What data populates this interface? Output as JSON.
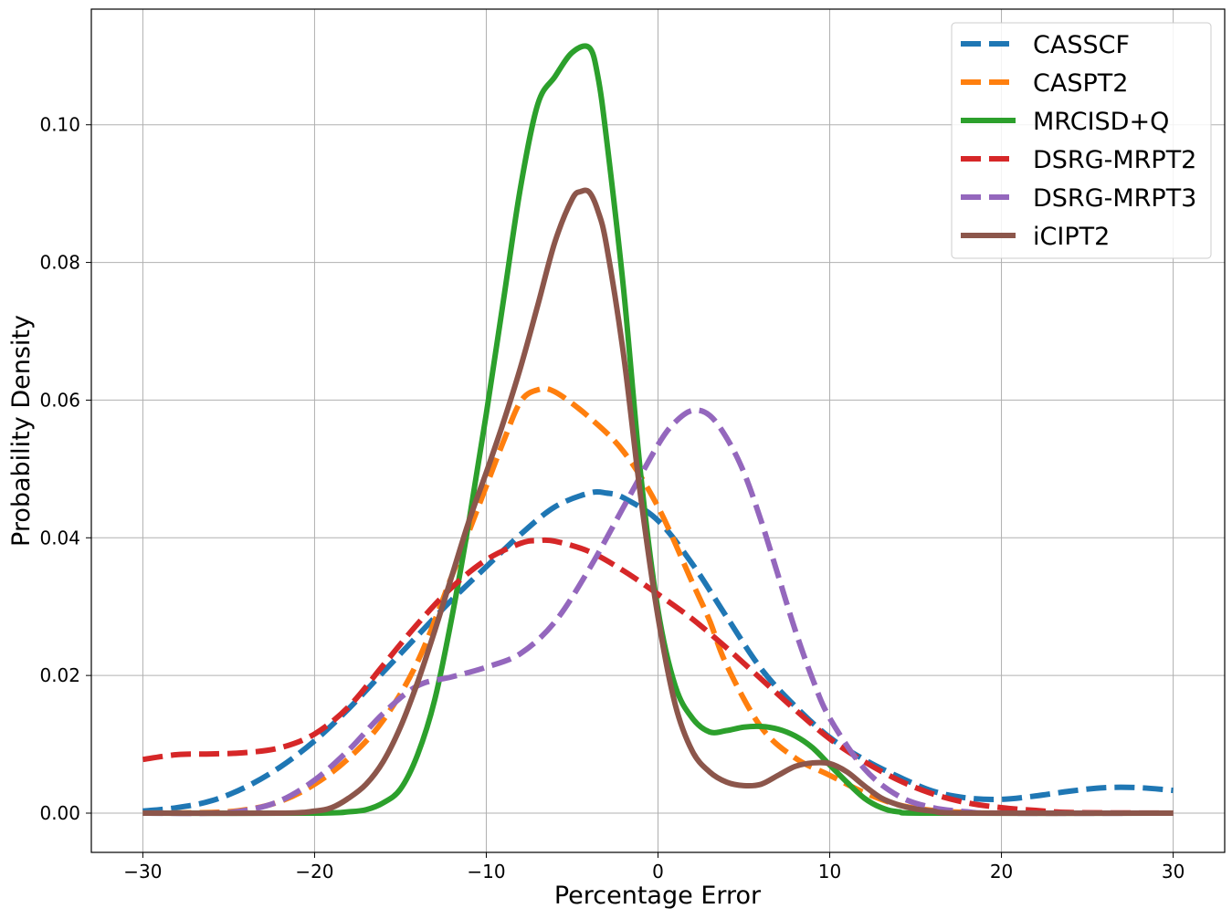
{
  "chart_data": {
    "type": "line",
    "title": "",
    "xlabel": "Percentage Error",
    "ylabel": "Probability Density",
    "xlim": [
      -33,
      33
    ],
    "ylim": [
      -0.0057,
      0.1168
    ],
    "x_ticks": [
      -30,
      -20,
      -10,
      0,
      10,
      20,
      30
    ],
    "x_tick_labels": [
      "−30",
      "−20",
      "−10",
      "0",
      "10",
      "20",
      "30"
    ],
    "y_ticks": [
      0.0,
      0.02,
      0.04,
      0.06,
      0.08,
      0.1
    ],
    "y_tick_labels": [
      "0.00",
      "0.02",
      "0.04",
      "0.06",
      "0.08",
      "0.10"
    ],
    "grid": true,
    "legend_position": "top-right",
    "series": [
      {
        "name": "CASSCF",
        "color": "#1f77b4",
        "style": "dashed",
        "points": [
          [
            -30,
            0.0003
          ],
          [
            -28,
            0.0008
          ],
          [
            -26,
            0.0018
          ],
          [
            -24,
            0.0038
          ],
          [
            -22,
            0.0067
          ],
          [
            -20,
            0.0105
          ],
          [
            -18,
            0.0152
          ],
          [
            -16,
            0.0205
          ],
          [
            -14,
            0.0258
          ],
          [
            -12,
            0.031
          ],
          [
            -10,
            0.0358
          ],
          [
            -8,
            0.0405
          ],
          [
            -6,
            0.0445
          ],
          [
            -4,
            0.0465
          ],
          [
            -3,
            0.0465
          ],
          [
            -2,
            0.0458
          ],
          [
            0,
            0.0425
          ],
          [
            2,
            0.0362
          ],
          [
            4,
            0.0285
          ],
          [
            6,
            0.021
          ],
          [
            8,
            0.0155
          ],
          [
            10,
            0.011
          ],
          [
            12,
            0.0078
          ],
          [
            14,
            0.0053
          ],
          [
            16,
            0.0032
          ],
          [
            18,
            0.0022
          ],
          [
            20,
            0.002
          ],
          [
            22,
            0.0025
          ],
          [
            24,
            0.0032
          ],
          [
            26,
            0.0037
          ],
          [
            28,
            0.0037
          ],
          [
            30,
            0.0033
          ]
        ]
      },
      {
        "name": "CASPT2",
        "color": "#ff7f0e",
        "style": "dashed",
        "points": [
          [
            -30,
            0.0
          ],
          [
            -26,
            0.0001
          ],
          [
            -24,
            0.0005
          ],
          [
            -22,
            0.0017
          ],
          [
            -20,
            0.0042
          ],
          [
            -18,
            0.008
          ],
          [
            -16,
            0.0135
          ],
          [
            -14,
            0.022
          ],
          [
            -12,
            0.0345
          ],
          [
            -10,
            0.0475
          ],
          [
            -9,
            0.054
          ],
          [
            -8,
            0.0598
          ],
          [
            -7,
            0.0615
          ],
          [
            -6,
            0.0612
          ],
          [
            -4,
            0.0575
          ],
          [
            -2,
            0.0525
          ],
          [
            0,
            0.0445
          ],
          [
            2,
            0.0335
          ],
          [
            3,
            0.028
          ],
          [
            4,
            0.0215
          ],
          [
            6,
            0.0125
          ],
          [
            8,
            0.008
          ],
          [
            10,
            0.0055
          ],
          [
            12,
            0.003
          ],
          [
            14,
            0.0012
          ],
          [
            16,
            0.0004
          ],
          [
            18,
            0.0001
          ],
          [
            20,
            0.0
          ],
          [
            30,
            0.0
          ]
        ]
      },
      {
        "name": "MRCISD+Q",
        "color": "#2ca02c",
        "style": "solid",
        "points": [
          [
            -30,
            0.0
          ],
          [
            -20,
            0.0
          ],
          [
            -18,
            0.0002
          ],
          [
            -17,
            0.0005
          ],
          [
            -16,
            0.0015
          ],
          [
            -15,
            0.0035
          ],
          [
            -14,
            0.0085
          ],
          [
            -13,
            0.0165
          ],
          [
            -12,
            0.0285
          ],
          [
            -11,
            0.0425
          ],
          [
            -10,
            0.058
          ],
          [
            -9,
            0.0745
          ],
          [
            -8,
            0.091
          ],
          [
            -7,
            0.103
          ],
          [
            -6,
            0.107
          ],
          [
            -5,
            0.1105
          ],
          [
            -4,
            0.1112
          ],
          [
            -3.5,
            0.107
          ],
          [
            -3,
            0.098
          ],
          [
            -2,
            0.076
          ],
          [
            -1,
            0.049
          ],
          [
            0,
            0.0295
          ],
          [
            1,
            0.0185
          ],
          [
            2,
            0.0138
          ],
          [
            3,
            0.0118
          ],
          [
            4,
            0.012
          ],
          [
            5,
            0.0125
          ],
          [
            6,
            0.0126
          ],
          [
            7,
            0.0122
          ],
          [
            8,
            0.0112
          ],
          [
            9,
            0.0095
          ],
          [
            10,
            0.007
          ],
          [
            11,
            0.0045
          ],
          [
            12,
            0.0022
          ],
          [
            13,
            0.0008
          ],
          [
            14,
            0.0002
          ],
          [
            16,
            0.0
          ],
          [
            30,
            0.0
          ]
        ]
      },
      {
        "name": "DSRG-MRPT2",
        "color": "#d62728",
        "style": "dashed",
        "points": [
          [
            -30,
            0.0078
          ],
          [
            -28,
            0.0085
          ],
          [
            -26,
            0.0086
          ],
          [
            -24,
            0.0088
          ],
          [
            -22,
            0.0095
          ],
          [
            -20,
            0.0115
          ],
          [
            -18,
            0.0155
          ],
          [
            -16,
            0.0215
          ],
          [
            -14,
            0.0275
          ],
          [
            -12,
            0.0328
          ],
          [
            -10,
            0.0368
          ],
          [
            -8,
            0.0392
          ],
          [
            -7,
            0.0396
          ],
          [
            -6,
            0.0395
          ],
          [
            -4,
            0.038
          ],
          [
            -2,
            0.0352
          ],
          [
            0,
            0.0318
          ],
          [
            2,
            0.0282
          ],
          [
            4,
            0.024
          ],
          [
            6,
            0.0195
          ],
          [
            8,
            0.015
          ],
          [
            10,
            0.0108
          ],
          [
            12,
            0.0075
          ],
          [
            14,
            0.0048
          ],
          [
            16,
            0.0028
          ],
          [
            18,
            0.0015
          ],
          [
            20,
            0.0008
          ],
          [
            22,
            0.0004
          ],
          [
            24,
            0.0001
          ],
          [
            30,
            0.0
          ]
        ]
      },
      {
        "name": "DSRG-MRPT3",
        "color": "#9467bd",
        "style": "dashed",
        "points": [
          [
            -30,
            0.0
          ],
          [
            -26,
            0.0
          ],
          [
            -24,
            0.0004
          ],
          [
            -22,
            0.0018
          ],
          [
            -20,
            0.0048
          ],
          [
            -18,
            0.0092
          ],
          [
            -16,
            0.0145
          ],
          [
            -14,
            0.0185
          ],
          [
            -12,
            0.0198
          ],
          [
            -10,
            0.0212
          ],
          [
            -8,
            0.0232
          ],
          [
            -6,
            0.0278
          ],
          [
            -4,
            0.0355
          ],
          [
            -2,
            0.0445
          ],
          [
            0,
            0.0535
          ],
          [
            1,
            0.0568
          ],
          [
            2,
            0.0585
          ],
          [
            3,
            0.0578
          ],
          [
            4,
            0.0545
          ],
          [
            5,
            0.0495
          ],
          [
            6,
            0.0425
          ],
          [
            7,
            0.0345
          ],
          [
            8,
            0.0265
          ],
          [
            9,
            0.0195
          ],
          [
            10,
            0.0138
          ],
          [
            12,
            0.0065
          ],
          [
            14,
            0.0025
          ],
          [
            16,
            0.0008
          ],
          [
            18,
            0.0002
          ],
          [
            20,
            0.0
          ],
          [
            30,
            0.0
          ]
        ]
      },
      {
        "name": "iCIPT2",
        "color": "#8c564b",
        "style": "solid",
        "points": [
          [
            -30,
            0.0
          ],
          [
            -22,
            0.0
          ],
          [
            -20,
            0.0003
          ],
          [
            -19,
            0.0008
          ],
          [
            -18,
            0.0022
          ],
          [
            -17,
            0.0042
          ],
          [
            -16,
            0.0075
          ],
          [
            -15,
            0.0125
          ],
          [
            -14,
            0.019
          ],
          [
            -13,
            0.0265
          ],
          [
            -12,
            0.0345
          ],
          [
            -11,
            0.0425
          ],
          [
            -10,
            0.0495
          ],
          [
            -9,
            0.0568
          ],
          [
            -8,
            0.0648
          ],
          [
            -7,
            0.0738
          ],
          [
            -6,
            0.083
          ],
          [
            -5,
            0.0892
          ],
          [
            -4.5,
            0.0903
          ],
          [
            -4,
            0.0902
          ],
          [
            -3.5,
            0.0875
          ],
          [
            -3,
            0.0825
          ],
          [
            -2,
            0.0665
          ],
          [
            -1,
            0.0458
          ],
          [
            0,
            0.0285
          ],
          [
            1,
            0.0158
          ],
          [
            2,
            0.009
          ],
          [
            3,
            0.006
          ],
          [
            4,
            0.0045
          ],
          [
            5,
            0.004
          ],
          [
            6,
            0.0042
          ],
          [
            7,
            0.0055
          ],
          [
            8,
            0.0068
          ],
          [
            9,
            0.0073
          ],
          [
            10,
            0.0072
          ],
          [
            11,
            0.006
          ],
          [
            12,
            0.004
          ],
          [
            13,
            0.0022
          ],
          [
            14,
            0.0012
          ],
          [
            15,
            0.0006
          ],
          [
            16,
            0.0003
          ],
          [
            18,
            0.0
          ],
          [
            30,
            0.0
          ]
        ]
      }
    ]
  }
}
